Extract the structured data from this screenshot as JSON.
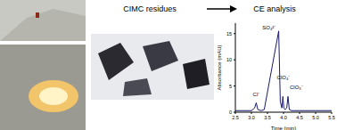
{
  "labels": [
    "CIMC residues",
    "CE analysis"
  ],
  "chart_data": {
    "type": "line",
    "x_label": "Time (min)",
    "y_label": "Absorbance (mAU)",
    "x": [
      2.5,
      3.0,
      3.1,
      3.15,
      3.2,
      3.3,
      3.4,
      3.85,
      3.9,
      3.95,
      3.98,
      4.01,
      4.05,
      4.1,
      4.14,
      4.18,
      4.25,
      4.5,
      5.0,
      5.5
    ],
    "values": [
      0.3,
      0.3,
      0.8,
      1.8,
      0.5,
      0.3,
      0.5,
      15.5,
      2,
      0.8,
      3,
      0.8,
      0.5,
      0.8,
      3,
      0.5,
      0.3,
      0.3,
      0.3,
      0.3
    ],
    "color": "#1a1a6e",
    "xlim": [
      2.5,
      5.5
    ],
    "xticks": [
      2.5,
      3.0,
      3.5,
      4.0,
      4.5,
      5.0,
      5.5
    ],
    "ylim": [
      0,
      17
    ],
    "yticks": [
      0,
      5,
      10,
      15
    ],
    "annotations": [
      {
        "text": "Cl⁻",
        "x": 3.15,
        "y": 2.2
      },
      {
        "text": "SO₄²⁻",
        "x": 3.55,
        "y": 15
      },
      {
        "text": "ClO₄⁻",
        "x": 4.0,
        "y": 5.5
      },
      {
        "text": "ClO₃⁻",
        "x": 4.4,
        "y": 3.5
      }
    ]
  }
}
